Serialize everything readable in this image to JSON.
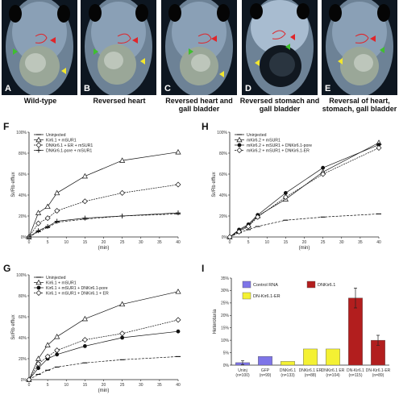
{
  "photos": [
    {
      "letter": "A",
      "caption": "Wild-type"
    },
    {
      "letter": "B",
      "caption": "Reversed heart"
    },
    {
      "letter": "C",
      "caption": "Reversed heart and gall bladder"
    },
    {
      "letter": "D",
      "caption": "Reversed stomach and gall bladder"
    },
    {
      "letter": "E",
      "caption": "Reversal of heart, stomach, gall bladder"
    }
  ],
  "panels": {
    "F": "F",
    "G": "G",
    "H": "H",
    "I": "I"
  },
  "colors": {
    "pink": "#c8a8cf",
    "purple": "#7e75e8",
    "red": "#b21e1e",
    "yellow": "#f4f133",
    "arrow_red": "#e0252a",
    "arrow_green": "#3fbf2f",
    "arrow_yellow": "#f2e62e"
  },
  "chart_data": [
    {
      "panel": "F",
      "type": "line",
      "ylabel": "Sr/Rb efflux",
      "xlabel": "(min)",
      "x": [
        0,
        2.5,
        5,
        7.5,
        15,
        25,
        40
      ],
      "xticks": [
        0,
        5,
        10,
        15,
        20,
        25,
        30,
        35,
        40
      ],
      "yticks": [
        "0%",
        "20%",
        "40%",
        "60%",
        "80%",
        "100%"
      ],
      "xlim": [
        0,
        40
      ],
      "ylim": [
        0,
        100
      ],
      "series": [
        {
          "name": "Uninjected",
          "marker": "dash",
          "values": [
            0,
            5,
            9,
            14,
            17,
            20,
            22
          ]
        },
        {
          "name": "Kir6.1 + mSUR1",
          "marker": "triangle",
          "values": [
            0,
            23,
            29,
            42,
            58,
            73,
            81
          ]
        },
        {
          "name": "DNKir6.1 + ER + mSUR1",
          "marker": "diamond",
          "values": [
            0,
            13,
            18,
            25,
            34,
            42,
            50
          ]
        },
        {
          "name": "DNKir6.1-pore + mSUR1",
          "marker": "plus",
          "values": [
            0,
            6,
            10,
            15,
            18,
            20,
            23
          ]
        }
      ]
    },
    {
      "panel": "G",
      "type": "line",
      "ylabel": "Sr/Rb efflux",
      "xlabel": "(min)",
      "x": [
        0,
        2.5,
        5,
        7.5,
        15,
        25,
        40
      ],
      "xticks": [
        0,
        5,
        10,
        15,
        20,
        25,
        30,
        35,
        40
      ],
      "yticks": [
        "0%",
        "20%",
        "40%",
        "60%",
        "80%",
        "100%"
      ],
      "xlim": [
        0,
        40
      ],
      "ylim": [
        0,
        100
      ],
      "series": [
        {
          "name": "Uninjected",
          "marker": "dash",
          "values": [
            0,
            5,
            9,
            12,
            16,
            19,
            22
          ]
        },
        {
          "name": "Kir6.1 + mSUR1",
          "marker": "triangle",
          "values": [
            0,
            20,
            33,
            41,
            58,
            72,
            84
          ]
        },
        {
          "name": "Kir6.1 + mSUR1 + DNKir6.1-pore",
          "marker": "circle",
          "values": [
            0,
            11,
            20,
            24,
            32,
            40,
            46
          ]
        },
        {
          "name": "Kir6.1 + mSUR1 + DNKir6.1 + ER",
          "marker": "diamond",
          "values": [
            0,
            15,
            22,
            28,
            38,
            44,
            57
          ]
        }
      ]
    },
    {
      "panel": "H",
      "type": "line",
      "ylabel": "Sr/Rb efflux",
      "xlabel": "(min)",
      "x": [
        0,
        2.5,
        5,
        7.5,
        15,
        25,
        40
      ],
      "xticks": [
        0,
        5,
        10,
        15,
        20,
        25,
        30,
        35,
        40
      ],
      "yticks": [
        "0%",
        "20%",
        "40%",
        "60%",
        "80%",
        "100%"
      ],
      "xlim": [
        0,
        40
      ],
      "ylim": [
        0,
        100
      ],
      "series": [
        {
          "name": "Uninjected",
          "marker": "dash",
          "values": [
            0,
            4,
            7,
            10,
            16,
            19,
            22
          ]
        },
        {
          "name": "mKir6.2 + mSUR1",
          "marker": "triangle",
          "values": [
            0,
            6,
            11,
            20,
            36,
            62,
            90
          ]
        },
        {
          "name": "mKir6.2 + mSUR1 + DNKir6.1-pore",
          "marker": "circle",
          "values": [
            0,
            7,
            12,
            21,
            42,
            66,
            88
          ]
        },
        {
          "name": "mKir6.2 + mSUR1 + DNKir6.1-ER",
          "marker": "diamond",
          "values": [
            0,
            5,
            10,
            19,
            38,
            60,
            85
          ]
        }
      ]
    },
    {
      "panel": "I",
      "type": "bar",
      "ylabel": "Heterotaxia",
      "yticks": [
        "0%",
        "5%",
        "10%",
        "15%",
        "20%",
        "25%",
        "30%",
        "35%"
      ],
      "ylim": [
        0,
        35
      ],
      "legend": [
        "Control RNA",
        "DNKir6.1",
        "DN-Kir6.1-ER"
      ],
      "legend_colors": [
        "#7e75e8",
        "#b21e1e",
        "#f4f133"
      ],
      "categories": [
        "Uninj (n=100)",
        "GFP (n=99)",
        "DNKir6.1 (n=133)",
        "DNKir6.1 ER (n=88)",
        "DNKir6.1 ER (n=104)",
        "DN-Kir6.1 (n=115)",
        "DN-Kir6.1-ER (n=89)"
      ],
      "values": [
        1,
        3.5,
        1.5,
        6.5,
        6.5,
        27,
        10
      ],
      "errors": [
        0.8,
        0,
        0,
        0,
        0,
        4,
        2
      ],
      "bar_colors": [
        "#7e75e8",
        "#7e75e8",
        "#f4f133",
        "#f4f133",
        "#f4f133",
        "#b21e1e",
        "#b21e1e"
      ]
    }
  ]
}
